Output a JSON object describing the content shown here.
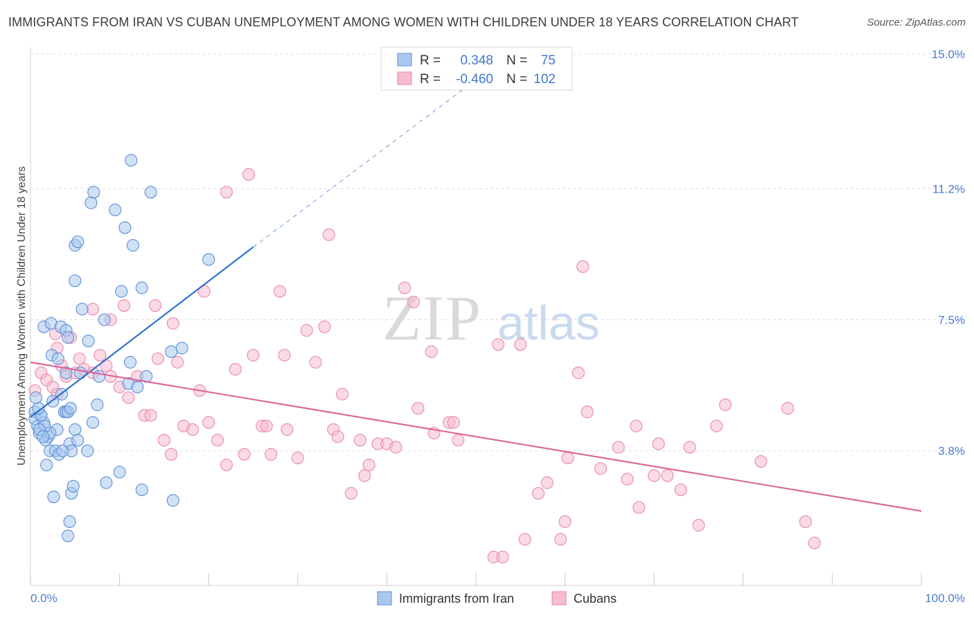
{
  "title": "IMMIGRANTS FROM IRAN VS CUBAN UNEMPLOYMENT AMONG WOMEN WITH CHILDREN UNDER 18 YEARS CORRELATION CHART",
  "source": "Source: ZipAtlas.com",
  "watermark": {
    "zip": "ZIP",
    "atlas": "atlas"
  },
  "colors": {
    "iran_fill": "#aac8ee",
    "iran_stroke": "#5b8fd6",
    "iran_line": "#2e6fcf",
    "cuban_fill": "#f6bcd0",
    "cuban_stroke": "#e889ab",
    "cuban_line": "#e0669a",
    "value_text": "#3f77d0",
    "grid": "#dcdcdc",
    "axis_text": "#4a7bd0"
  },
  "legend": {
    "r_label": "R =",
    "n_label": "N =",
    "iran": {
      "r": "0.348",
      "n": "75"
    },
    "cuban": {
      "r": "-0.460",
      "n": "102"
    }
  },
  "bottom_legend": {
    "iran": "Immigrants from Iran",
    "cuban": "Cubans"
  },
  "chart_data": {
    "type": "scatter",
    "title": "IMMIGRANTS FROM IRAN VS CUBAN UNEMPLOYMENT AMONG WOMEN WITH CHILDREN UNDER 18 YEARS CORRELATION CHART",
    "xlabel": "",
    "ylabel": "Unemployment Among Women with Children Under 18 years",
    "xlim": [
      0,
      100
    ],
    "ylim": [
      0.0,
      15.0
    ],
    "x_tick_labels": {
      "min": "0.0%",
      "max": "100.0%"
    },
    "y_ticks": [
      3.8,
      7.5,
      11.2,
      15.0
    ],
    "y_tick_labels": [
      "3.8%",
      "7.5%",
      "11.2%",
      "15.0%"
    ],
    "series": [
      {
        "name": "Immigrants from Iran",
        "r": 0.348,
        "n": 75,
        "trend": {
          "x0": 0,
          "y0": 4.75,
          "x1": 25,
          "y1": 9.55,
          "dash_to_x": 52,
          "dash_to_y": 14.65
        },
        "points": [
          [
            0.5,
            4.9
          ],
          [
            0.5,
            4.7
          ],
          [
            0.8,
            4.5
          ],
          [
            1.0,
            4.3
          ],
          [
            1.2,
            4.8
          ],
          [
            1.5,
            4.6
          ],
          [
            1.7,
            4.1
          ],
          [
            2.0,
            4.2
          ],
          [
            1.8,
            3.4
          ],
          [
            2.2,
            3.8
          ],
          [
            2.5,
            5.2
          ],
          [
            2.8,
            3.8
          ],
          [
            3.0,
            4.4
          ],
          [
            3.2,
            3.7
          ],
          [
            3.5,
            5.4
          ],
          [
            3.8,
            4.9
          ],
          [
            4.0,
            4.9
          ],
          [
            4.4,
            4.0
          ],
          [
            4.6,
            3.8
          ],
          [
            5.0,
            4.4
          ],
          [
            5.3,
            4.1
          ],
          [
            6.4,
            3.8
          ],
          [
            7.0,
            4.6
          ],
          [
            7.5,
            5.1
          ],
          [
            8.5,
            2.9
          ],
          [
            10.0,
            3.2
          ],
          [
            11.0,
            5.7
          ],
          [
            12.0,
            5.6
          ],
          [
            12.5,
            2.7
          ],
          [
            13.0,
            5.9
          ],
          [
            16.0,
            2.4
          ],
          [
            20.0,
            9.2
          ],
          [
            1.5,
            7.3
          ],
          [
            2.3,
            7.4
          ],
          [
            3.4,
            7.3
          ],
          [
            4.0,
            7.2
          ],
          [
            4.2,
            7.0
          ],
          [
            5.8,
            7.8
          ],
          [
            6.5,
            6.9
          ],
          [
            8.3,
            7.5
          ],
          [
            10.2,
            8.3
          ],
          [
            12.5,
            8.4
          ],
          [
            15.8,
            6.6
          ],
          [
            17.0,
            6.7
          ],
          [
            7.7,
            5.9
          ],
          [
            5.6,
            6.0
          ],
          [
            11.2,
            6.3
          ],
          [
            2.4,
            6.5
          ],
          [
            3.1,
            6.4
          ],
          [
            4.0,
            6.0
          ],
          [
            5.0,
            8.6
          ],
          [
            5.0,
            9.6
          ],
          [
            5.3,
            9.7
          ],
          [
            6.8,
            10.8
          ],
          [
            7.1,
            11.1
          ],
          [
            9.5,
            10.6
          ],
          [
            10.6,
            10.1
          ],
          [
            11.5,
            9.6
          ],
          [
            13.5,
            11.1
          ],
          [
            11.3,
            12.0
          ],
          [
            4.2,
            4.9
          ],
          [
            4.5,
            5.0
          ],
          [
            2.6,
            2.5
          ],
          [
            4.6,
            2.6
          ],
          [
            4.8,
            2.8
          ],
          [
            4.4,
            1.8
          ],
          [
            4.2,
            1.4
          ],
          [
            3.6,
            3.8
          ],
          [
            2.2,
            4.3
          ],
          [
            1.6,
            4.5
          ],
          [
            1.2,
            4.8
          ],
          [
            0.9,
            5.0
          ],
          [
            0.6,
            5.3
          ],
          [
            1.0,
            4.4
          ],
          [
            1.4,
            4.2
          ]
        ]
      },
      {
        "name": "Cubans",
        "r": -0.46,
        "n": 102,
        "trend": {
          "x0": 0,
          "y0": 6.3,
          "x1": 100,
          "y1": 2.1
        },
        "points": [
          [
            0.5,
            5.5
          ],
          [
            1.2,
            6.0
          ],
          [
            1.8,
            5.8
          ],
          [
            2.5,
            5.6
          ],
          [
            3.0,
            5.4
          ],
          [
            3.5,
            6.2
          ],
          [
            4.0,
            5.9
          ],
          [
            5.0,
            6.0
          ],
          [
            5.5,
            6.4
          ],
          [
            6.0,
            6.1
          ],
          [
            7.0,
            6.0
          ],
          [
            7.8,
            6.5
          ],
          [
            8.5,
            6.2
          ],
          [
            9.0,
            5.9
          ],
          [
            10.0,
            5.6
          ],
          [
            11.0,
            5.3
          ],
          [
            12.0,
            5.9
          ],
          [
            12.8,
            4.8
          ],
          [
            13.5,
            4.8
          ],
          [
            14.3,
            6.4
          ],
          [
            15.0,
            4.1
          ],
          [
            15.8,
            3.7
          ],
          [
            16.5,
            6.3
          ],
          [
            17.2,
            4.5
          ],
          [
            18.2,
            4.4
          ],
          [
            19.0,
            5.5
          ],
          [
            20.0,
            4.6
          ],
          [
            21.0,
            4.1
          ],
          [
            22.0,
            3.4
          ],
          [
            23.0,
            6.1
          ],
          [
            24.0,
            3.7
          ],
          [
            25.0,
            6.5
          ],
          [
            26.0,
            4.5
          ],
          [
            26.5,
            4.5
          ],
          [
            27.0,
            3.7
          ],
          [
            28.0,
            8.3
          ],
          [
            28.5,
            6.5
          ],
          [
            28.8,
            4.4
          ],
          [
            30.0,
            3.6
          ],
          [
            31.0,
            7.2
          ],
          [
            32.0,
            6.3
          ],
          [
            33.0,
            7.3
          ],
          [
            34.0,
            4.4
          ],
          [
            34.5,
            4.2
          ],
          [
            35.0,
            5.4
          ],
          [
            36.0,
            2.6
          ],
          [
            37.0,
            4.1
          ],
          [
            37.5,
            3.1
          ],
          [
            38.0,
            3.4
          ],
          [
            39.0,
            4.0
          ],
          [
            40.0,
            4.0
          ],
          [
            41.0,
            3.9
          ],
          [
            42.0,
            8.4
          ],
          [
            45.0,
            6.6
          ],
          [
            45.3,
            4.3
          ],
          [
            47.0,
            4.6
          ],
          [
            47.5,
            4.6
          ],
          [
            48.0,
            4.1
          ],
          [
            52.0,
            0.8
          ],
          [
            53.0,
            0.8
          ],
          [
            52.5,
            6.8
          ],
          [
            55.0,
            6.8
          ],
          [
            55.5,
            1.3
          ],
          [
            57.0,
            2.6
          ],
          [
            58.0,
            2.9
          ],
          [
            59.5,
            1.3
          ],
          [
            60.0,
            1.8
          ],
          [
            60.3,
            3.6
          ],
          [
            61.5,
            6.0
          ],
          [
            62.0,
            9.0
          ],
          [
            62.5,
            4.9
          ],
          [
            64.0,
            3.3
          ],
          [
            66.0,
            3.9
          ],
          [
            67.0,
            3.0
          ],
          [
            68.0,
            4.5
          ],
          [
            68.3,
            2.2
          ],
          [
            70.0,
            3.1
          ],
          [
            70.5,
            4.0
          ],
          [
            71.5,
            3.1
          ],
          [
            73.0,
            2.7
          ],
          [
            74.0,
            3.9
          ],
          [
            75.0,
            1.7
          ],
          [
            77.0,
            4.5
          ],
          [
            78.0,
            5.1
          ],
          [
            82.0,
            3.5
          ],
          [
            85.0,
            5.0
          ],
          [
            87.0,
            1.8
          ],
          [
            88.0,
            1.2
          ],
          [
            7.0,
            7.8
          ],
          [
            9.0,
            7.5
          ],
          [
            10.5,
            7.9
          ],
          [
            14.0,
            7.9
          ],
          [
            16.0,
            7.4
          ],
          [
            19.5,
            8.3
          ],
          [
            22.0,
            11.1
          ],
          [
            24.5,
            11.6
          ],
          [
            33.5,
            9.9
          ],
          [
            43.0,
            8.0
          ],
          [
            43.5,
            5.0
          ],
          [
            3.0,
            6.7
          ],
          [
            4.5,
            7.0
          ],
          [
            2.8,
            7.1
          ]
        ]
      }
    ]
  },
  "ylabel": "Unemployment Among Women with Children Under 18 years"
}
